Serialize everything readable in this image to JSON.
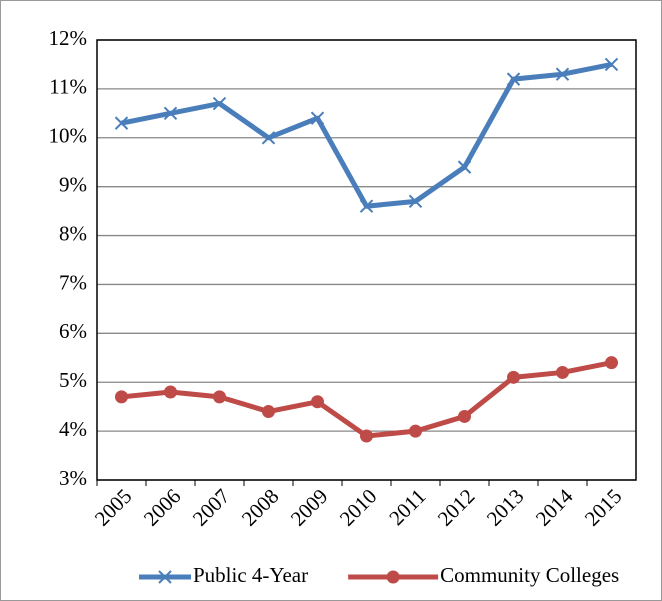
{
  "chart_data": {
    "type": "line",
    "categories": [
      "2005",
      "2006",
      "2007",
      "2008",
      "2009",
      "2010",
      "2011",
      "2012",
      "2013",
      "2014",
      "2015"
    ],
    "series": [
      {
        "name": "Public 4-Year",
        "color": "#4a7ebb",
        "marker": "x",
        "values": [
          10.3,
          10.5,
          10.7,
          10.0,
          10.4,
          8.6,
          8.7,
          9.4,
          11.2,
          11.3,
          11.5
        ]
      },
      {
        "name": "Community Colleges",
        "color": "#be4b48",
        "marker": "circle",
        "values": [
          4.7,
          4.8,
          4.7,
          4.4,
          4.6,
          3.9,
          4.0,
          4.3,
          5.1,
          5.2,
          5.4
        ]
      }
    ],
    "ylim": [
      3,
      12
    ],
    "yticks": [
      {
        "value": 3,
        "label": "3%"
      },
      {
        "value": 4,
        "label": "4%"
      },
      {
        "value": 5,
        "label": "5%"
      },
      {
        "value": 6,
        "label": "6%"
      },
      {
        "value": 7,
        "label": "7%"
      },
      {
        "value": 8,
        "label": "8%"
      },
      {
        "value": 9,
        "label": "9%"
      },
      {
        "value": 10,
        "label": "10%"
      },
      {
        "value": 11,
        "label": "11%"
      },
      {
        "value": 12,
        "label": "12%"
      }
    ],
    "grid": true,
    "legend": "bottom"
  }
}
